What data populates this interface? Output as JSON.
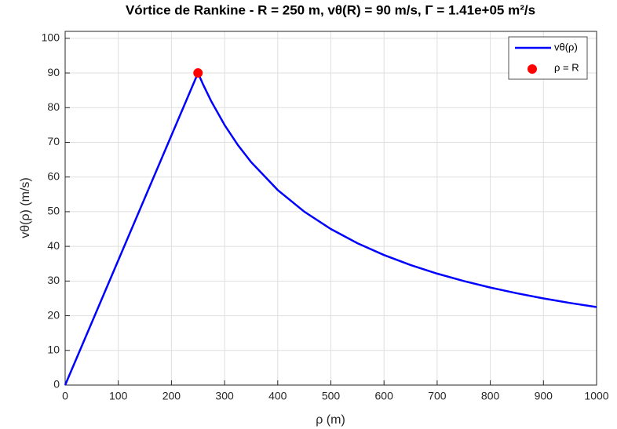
{
  "chart_data": {
    "type": "line",
    "title": "Vórtice de Rankine - R = 250 m, vθ(R) = 90 m/s, Γ = 1.41e+05 m²/s",
    "x_label": "ρ (m)",
    "y_label": "vθ(ρ) (m/s)",
    "series": [
      {
        "name": "vθ(ρ)",
        "color": "#0000ff",
        "style": "line",
        "x": [
          0,
          250,
          260,
          275,
          300,
          325,
          350,
          400,
          450,
          500,
          550,
          600,
          650,
          700,
          750,
          800,
          850,
          900,
          950,
          1000
        ],
        "values": [
          0,
          90,
          86.54,
          81.82,
          75,
          69.23,
          64.29,
          56.25,
          50,
          45,
          40.91,
          37.5,
          34.62,
          32.14,
          30,
          28.13,
          26.47,
          25,
          23.68,
          22.5
        ]
      },
      {
        "name": "ρ = R",
        "color": "#ff0000",
        "style": "marker",
        "x": [
          250
        ],
        "values": [
          90
        ]
      }
    ],
    "xlim": [
      0,
      1000
    ],
    "xticks": [
      0,
      100,
      200,
      300,
      400,
      500,
      600,
      700,
      800,
      900,
      1000
    ],
    "ylim": [
      0,
      102
    ],
    "yticks": [
      0,
      10,
      20,
      30,
      40,
      50,
      60,
      70,
      80,
      90,
      100
    ],
    "grid": true,
    "legend": "top-right"
  }
}
